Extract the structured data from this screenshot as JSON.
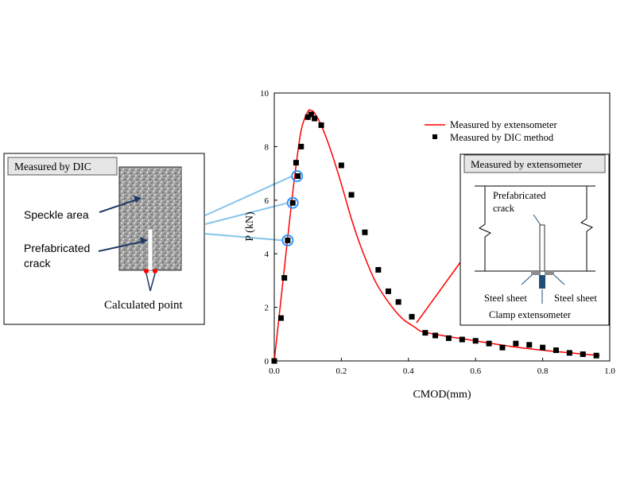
{
  "chart_data": {
    "type": "scatter",
    "xlabel": "CMOD(mm)",
    "ylabel": "P (kN)",
    "xlim": [
      0,
      1.0
    ],
    "ylim": [
      0,
      10
    ],
    "xticks": [
      "0.0",
      "0.2",
      "0.4",
      "0.6",
      "0.8",
      "1.0"
    ],
    "yticks": [
      "0",
      "2",
      "4",
      "6",
      "8",
      "10"
    ],
    "legend_position": "top-right",
    "series": [
      {
        "name": "Measured by extensometer",
        "type": "line",
        "color": "#ff0000",
        "x": [
          0.0,
          0.02,
          0.04,
          0.06,
          0.08,
          0.1,
          0.11,
          0.12,
          0.14,
          0.17,
          0.2,
          0.23,
          0.26,
          0.3,
          0.34,
          0.38,
          0.42,
          0.44,
          0.5,
          0.6,
          0.7,
          0.8,
          0.9,
          0.97
        ],
        "y": [
          0.0,
          2.3,
          4.6,
          6.8,
          8.6,
          9.3,
          9.35,
          9.25,
          8.8,
          7.8,
          6.6,
          5.3,
          4.2,
          3.0,
          2.2,
          1.6,
          1.25,
          1.1,
          0.95,
          0.75,
          0.55,
          0.4,
          0.28,
          0.2
        ]
      },
      {
        "name": "Measured by DIC method",
        "type": "scatter",
        "color": "#000000",
        "x": [
          0.0,
          0.02,
          0.03,
          0.04,
          0.055,
          0.065,
          0.07,
          0.08,
          0.1,
          0.11,
          0.12,
          0.14,
          0.2,
          0.23,
          0.27,
          0.31,
          0.34,
          0.37,
          0.41,
          0.45,
          0.48,
          0.52,
          0.56,
          0.6,
          0.64,
          0.68,
          0.72,
          0.76,
          0.8,
          0.84,
          0.88,
          0.92,
          0.96
        ],
        "y": [
          0.0,
          1.6,
          3.1,
          4.5,
          5.9,
          7.4,
          6.9,
          8.0,
          9.1,
          9.2,
          9.05,
          8.8,
          7.3,
          6.2,
          4.8,
          3.4,
          2.6,
          2.2,
          1.65,
          1.05,
          0.95,
          0.85,
          0.8,
          0.75,
          0.65,
          0.5,
          0.65,
          0.6,
          0.5,
          0.4,
          0.3,
          0.25,
          0.2
        ]
      }
    ],
    "highlighted_points": [
      [
        0.04,
        4.5
      ],
      [
        0.055,
        5.9
      ],
      [
        0.068,
        6.9
      ]
    ]
  },
  "left_inset": {
    "title": "Measured by DIC",
    "speckle_label": "Speckle area",
    "crack_label_line1": "Prefabricated",
    "crack_label_line2": "crack",
    "calculated_point": "Calculated point"
  },
  "right_inset": {
    "title": "Measured by extensometer",
    "crack_label_line1": "Prefabricated",
    "crack_label_line2": "crack",
    "steel_left": "Steel sheet",
    "steel_right": "Steel sheet",
    "clamp": "Clamp extensometer"
  }
}
